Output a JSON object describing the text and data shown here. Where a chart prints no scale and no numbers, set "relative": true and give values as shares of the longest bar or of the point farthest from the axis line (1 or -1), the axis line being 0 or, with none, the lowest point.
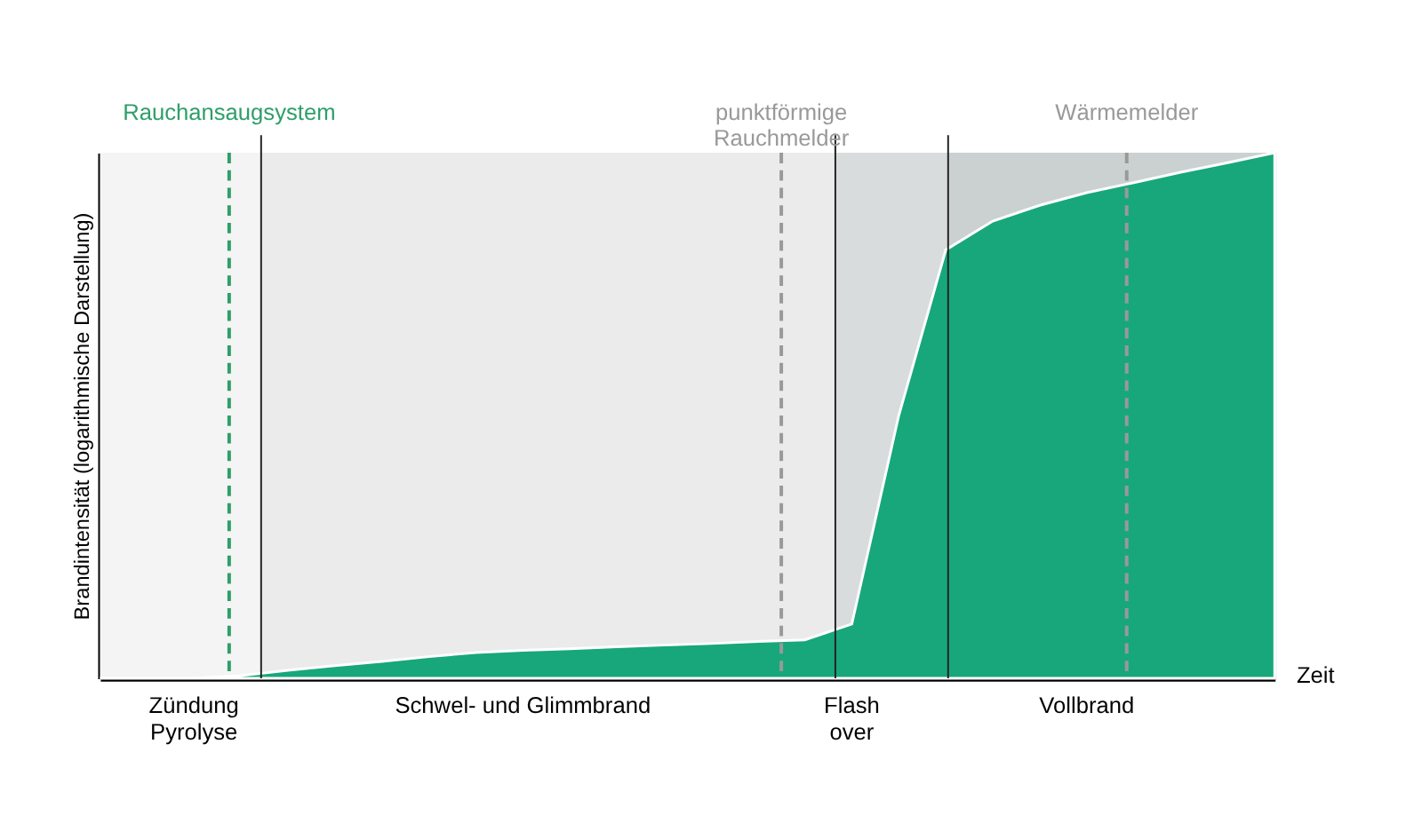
{
  "chart_data": {
    "type": "area",
    "relative": true,
    "xlabel": "Zeit",
    "ylabel": "Brandintensität (logarithmische Darstellung)",
    "categories": [
      null,
      null,
      "Zündung\nPyrolyse",
      null,
      null,
      null,
      null,
      null,
      null,
      "Schwel- und Glimmbrand",
      null,
      null,
      null,
      null,
      null,
      null,
      "Flash\nover",
      null,
      null,
      null,
      null,
      "Vollbrand",
      null,
      null,
      null,
      null
    ],
    "series": [
      {
        "color": "#17a77a",
        "values": [
          0,
          0,
          0,
          0.005,
          0.015,
          0.024,
          0.032,
          0.041,
          0.049,
          0.053,
          0.056,
          0.06,
          0.063,
          0.066,
          0.07,
          0.073,
          0.103,
          0.5,
          0.815,
          0.87,
          0.9,
          0.924,
          0.943,
          0.963,
          0.981,
          1
        ]
      }
    ],
    "annotations": [
      "Rauchansaugsystem",
      "punktförmige\nRauchmelder",
      "Wärmemelder"
    ],
    "marker": "none"
  }
}
